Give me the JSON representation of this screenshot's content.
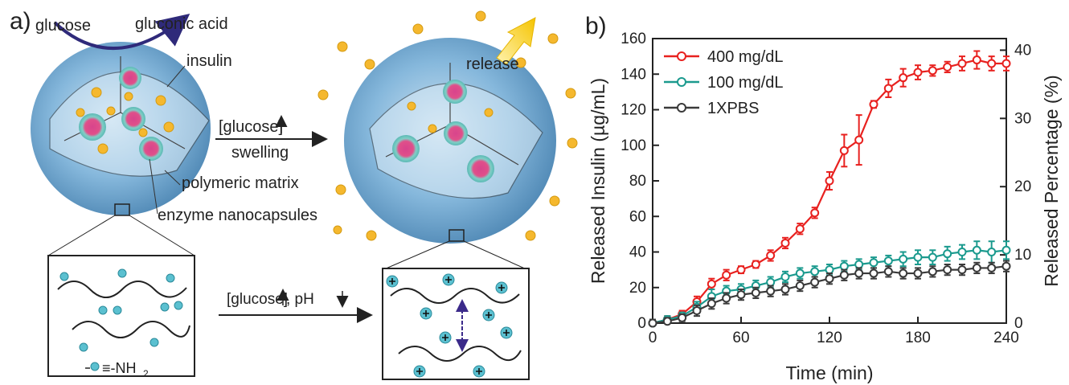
{
  "schematic": {
    "panel_label": "a)",
    "glucose": "glucose",
    "gluconic_acid": "gluconic acid",
    "insulin": "insulin",
    "release": "release",
    "arrow_top_label_1": "[glucose]",
    "arrow_top_label_2": "swelling",
    "polymeric_matrix": "polymeric matrix",
    "enzyme_nanocapsules": "enzyme nanocapsules",
    "arrow_bottom_label": "[glucose]",
    "arrow_bottom_label_2": ", pH",
    "legend_amine": "≡-NH",
    "legend_amine_sub": "2",
    "colors": {
      "sphere": "#7fb1d6",
      "insulin": "#f5b82e",
      "nanocapsule": "#6dc3c0",
      "cationic": "#5bc0d0"
    }
  },
  "chart_data": {
    "type": "line",
    "panel_label": "b)",
    "xlabel": "Time (min)",
    "ylabel_left": "Released Insulin (µg/mL)",
    "ylabel_right": "Released Percentage (%)",
    "xlim": [
      0,
      240
    ],
    "ylim": [
      0,
      160
    ],
    "ylim_right": [
      0,
      41.7
    ],
    "x_ticks": [
      "0",
      "60",
      "120",
      "180",
      "240"
    ],
    "y_ticks": [
      "0",
      "20",
      "40",
      "60",
      "80",
      "100",
      "120",
      "140",
      "160"
    ],
    "y_right_ticks": [
      "0",
      "10",
      "20",
      "30",
      "40"
    ],
    "legend_position": "top-left",
    "x": [
      0,
      10,
      20,
      30,
      40,
      50,
      60,
      70,
      80,
      90,
      100,
      110,
      120,
      130,
      140,
      150,
      160,
      170,
      180,
      190,
      200,
      210,
      220,
      230,
      240
    ],
    "series": [
      {
        "name": "400 mg/dL",
        "color": "#e8211f",
        "values": [
          0,
          2,
          5,
          12,
          22,
          27,
          30,
          33,
          38,
          45,
          53,
          62,
          80,
          97,
          103,
          123,
          132,
          138,
          141,
          142,
          144,
          146,
          148,
          146,
          146
        ],
        "errors": [
          2,
          2,
          2,
          3,
          3,
          3,
          2,
          2,
          3,
          3,
          3,
          3,
          5,
          9,
          14,
          2,
          5,
          5,
          4,
          3,
          3,
          4,
          5,
          4,
          4
        ]
      },
      {
        "name": "100 mg/dL",
        "color": "#1b9a8e",
        "values": [
          0,
          2,
          4,
          9,
          15,
          18,
          19,
          21,
          23,
          26,
          28,
          29,
          30,
          32,
          33,
          34,
          35,
          36,
          37,
          37,
          39,
          40,
          41,
          40,
          41
        ],
        "errors": [
          2,
          2,
          2,
          3,
          4,
          3,
          3,
          3,
          3,
          3,
          3,
          3,
          3,
          3,
          3,
          3,
          3,
          4,
          4,
          4,
          4,
          4,
          5,
          6,
          5
        ]
      },
      {
        "name": "1XPBS",
        "color": "#3a3a3a",
        "values": [
          0,
          1,
          3,
          7,
          11,
          14,
          16,
          17,
          18,
          19,
          21,
          23,
          25,
          27,
          28,
          28,
          29,
          28,
          28,
          29,
          30,
          30,
          31,
          31,
          32
        ],
        "errors": [
          2,
          2,
          2,
          3,
          3,
          3,
          3,
          3,
          3,
          3,
          3,
          3,
          3,
          3,
          3,
          3,
          3,
          3,
          3,
          3,
          3,
          3,
          3,
          3,
          3
        ]
      }
    ]
  }
}
